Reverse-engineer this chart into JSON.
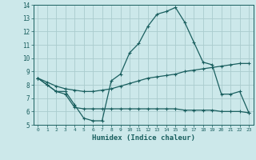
{
  "xlabel": "Humidex (Indice chaleur)",
  "bg_color": "#cce8ea",
  "grid_color": "#aaccce",
  "line_color": "#1a5f5f",
  "xlim": [
    -0.5,
    23.5
  ],
  "ylim": [
    5,
    14
  ],
  "xticks": [
    0,
    1,
    2,
    3,
    4,
    5,
    6,
    7,
    8,
    9,
    10,
    11,
    12,
    13,
    14,
    15,
    16,
    17,
    18,
    19,
    20,
    21,
    22,
    23
  ],
  "yticks": [
    5,
    6,
    7,
    8,
    9,
    10,
    11,
    12,
    13,
    14
  ],
  "curve1_x": [
    0,
    1,
    2,
    3,
    4,
    5,
    6,
    7,
    8,
    9,
    10,
    11,
    12,
    13,
    14,
    15,
    16,
    17,
    18,
    19,
    20,
    21,
    22,
    23
  ],
  "curve1_y": [
    8.5,
    8.0,
    7.5,
    7.5,
    6.5,
    5.5,
    5.3,
    5.3,
    8.3,
    8.8,
    10.4,
    11.1,
    12.4,
    13.3,
    13.5,
    13.8,
    12.7,
    11.2,
    9.7,
    9.5,
    7.3,
    7.3,
    7.5,
    5.9
  ],
  "curve2_x": [
    0,
    1,
    2,
    3,
    4,
    5,
    6,
    7,
    8,
    9,
    10,
    11,
    12,
    13,
    14,
    15,
    16,
    17,
    18,
    19,
    20,
    21,
    22,
    23
  ],
  "curve2_y": [
    8.5,
    8.0,
    7.5,
    7.3,
    6.3,
    6.2,
    6.2,
    6.2,
    6.2,
    6.2,
    6.2,
    6.2,
    6.2,
    6.2,
    6.2,
    6.2,
    6.1,
    6.1,
    6.1,
    6.1,
    6.0,
    6.0,
    6.0,
    5.9
  ],
  "curve3_x": [
    0,
    1,
    2,
    3,
    4,
    5,
    6,
    7,
    8,
    9,
    10,
    11,
    12,
    13,
    14,
    15,
    16,
    17,
    18,
    19,
    20,
    21,
    22,
    23
  ],
  "curve3_y": [
    8.5,
    8.2,
    7.9,
    7.7,
    7.6,
    7.5,
    7.5,
    7.6,
    7.7,
    7.9,
    8.1,
    8.3,
    8.5,
    8.6,
    8.7,
    8.8,
    9.0,
    9.1,
    9.2,
    9.3,
    9.4,
    9.5,
    9.6,
    9.6
  ]
}
